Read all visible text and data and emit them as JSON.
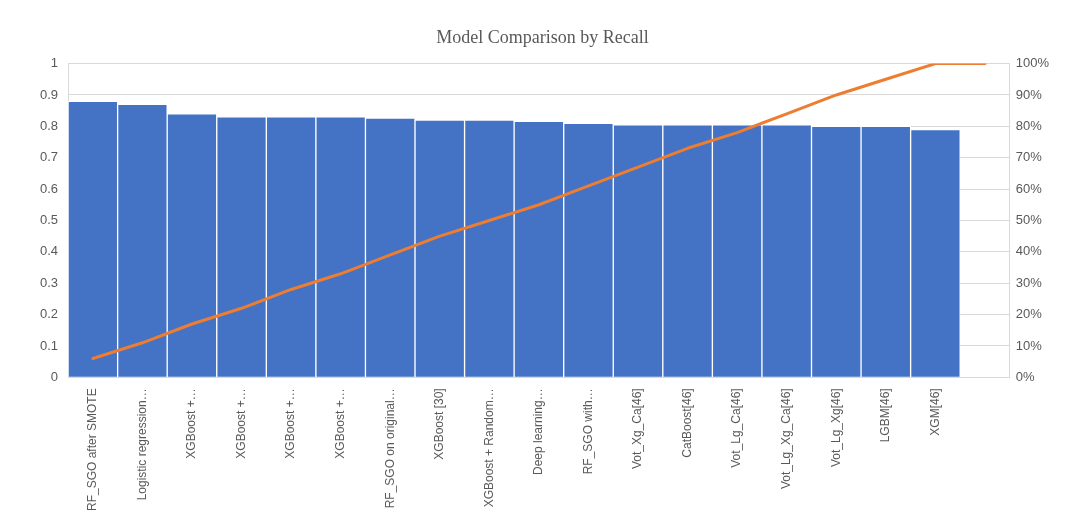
{
  "chart_data": {
    "type": "bar",
    "title": "Model Comparison by Recall",
    "categories": [
      "RF_SGO after SMOTE",
      "Logistic regression…",
      "XGBoost +…",
      "XGBoost +…",
      "XGBoost +…",
      "XGBoost +…",
      "RF_SGO on original…",
      "XGBoost [30]",
      "XGBoost + Random…",
      "Deep learning…",
      "RF_SGO with…",
      "Vot_Xg_Ca[46]",
      "CatBoost[46]",
      "Vot_Lg_Ca[46]",
      "Vot_Lg_Xg_Ca[46]",
      "Vot_Lg_Xg[46]",
      "LGBM[46]",
      "XGM[46]",
      null
    ],
    "series": [
      {
        "color": "#4472c4",
        "values": [
          0.88,
          0.87,
          0.84,
          0.83,
          0.83,
          0.83,
          0.826,
          0.82,
          0.82,
          0.816,
          0.81,
          0.805,
          0.805,
          0.805,
          0.805,
          0.8,
          0.8,
          0.79,
          null
        ]
      },
      {
        "type": "line",
        "color": "#ed7d31",
        "axis": "y2",
        "values": [
          6,
          11,
          17,
          22,
          28,
          33,
          39,
          45,
          50,
          55,
          61,
          67,
          73,
          78,
          84,
          90,
          95,
          100,
          100
        ]
      }
    ],
    "ylim": [
      0,
      1
    ],
    "yticks": [
      0,
      0.1,
      0.2,
      0.3,
      0.4,
      0.5,
      0.6,
      0.7,
      0.8,
      0.9,
      1
    ],
    "y2lim": [
      0,
      100
    ],
    "y2ticks": [
      {
        "value": 0,
        "label": "0%"
      },
      {
        "value": 10,
        "label": "10%"
      },
      {
        "value": 20,
        "label": "20%"
      },
      {
        "value": 30,
        "label": "30%"
      },
      {
        "value": 40,
        "label": "40%"
      },
      {
        "value": 50,
        "label": "50%"
      },
      {
        "value": 60,
        "label": "60%"
      },
      {
        "value": 70,
        "label": "70%"
      },
      {
        "value": 80,
        "label": "80%"
      },
      {
        "value": 90,
        "label": "90%"
      },
      {
        "value": 100,
        "label": "100%"
      }
    ],
    "grid": "y",
    "legend": false,
    "marker": "none"
  }
}
